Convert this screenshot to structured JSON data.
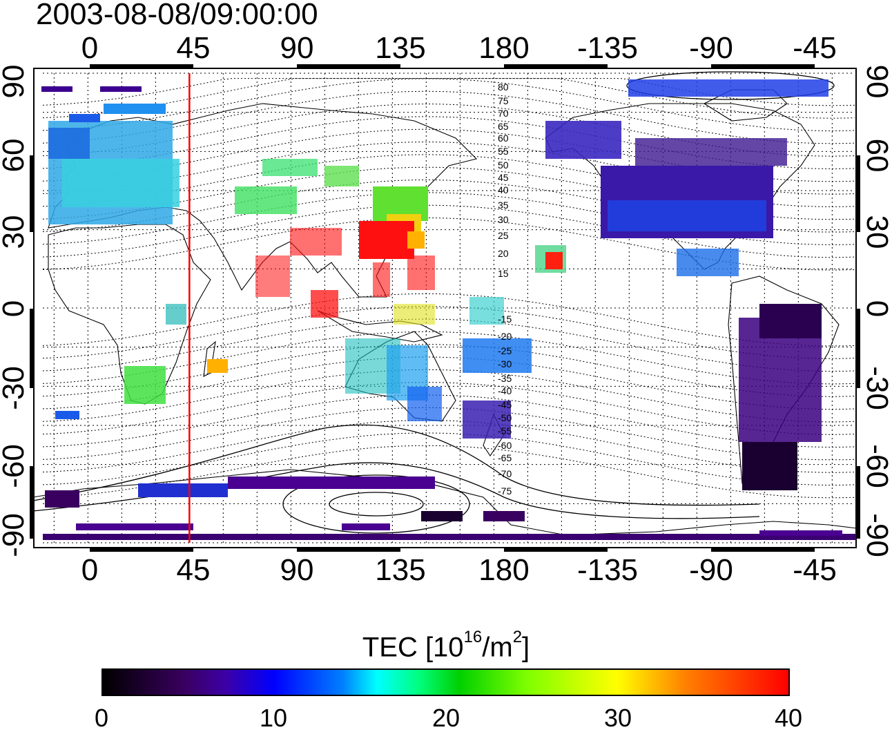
{
  "title": "2003-08-08/09:00:00",
  "axes": {
    "top_ticks": [
      "0",
      "45",
      "90",
      "135",
      "180",
      "-135",
      "-90",
      "-45"
    ],
    "bottom_ticks": [
      "0",
      "45",
      "90",
      "135",
      "180",
      "-135",
      "-90",
      "-45"
    ],
    "left_ticks": [
      "90",
      "60",
      "30",
      "0",
      "-30",
      "-60",
      "-90"
    ],
    "right_ticks": [
      "90",
      "60",
      "30",
      "0",
      "-30",
      "-60",
      "-90"
    ]
  },
  "contour_labels_north": [
    "80",
    "75",
    "70",
    "65",
    "60",
    "55",
    "50",
    "45",
    "40",
    "35",
    "30",
    "25",
    "20",
    "15"
  ],
  "contour_labels_south": [
    "-15",
    "-20",
    "-25",
    "-30",
    "-35",
    "-40",
    "-45",
    "-50",
    "-55",
    "-60",
    "-65",
    "-70",
    "-75"
  ],
  "marker_longitude": 45,
  "colorbar": {
    "title_main": "TEC  [10",
    "title_sup1": "16",
    "title_mid": "/m",
    "title_sup2": "2",
    "title_end": "]",
    "ticks": [
      "0",
      "10",
      "20",
      "30",
      "40"
    ],
    "range": [
      0,
      40
    ]
  },
  "colors": {
    "marker_line": "#ff0000"
  },
  "chart_data": {
    "type": "heatmap",
    "title": "2003-08-08/09:00:00",
    "x_range": [
      -20,
      340
    ],
    "y_range": [
      -90,
      90
    ],
    "value_range": [
      0,
      40
    ],
    "colorbar_label": "TEC  [10^16/m^2]",
    "regions": [
      {
        "lon": [
          -20,
          40
        ],
        "lat": [
          30,
          75
        ],
        "tec": 15
      },
      {
        "lon": [
          -20,
          45
        ],
        "lat": [
          75,
          85
        ],
        "tec": 6
      },
      {
        "lon": [
          95,
          140
        ],
        "lat": [
          0,
          35
        ],
        "tec": 38
      },
      {
        "lon": [
          125,
          155
        ],
        "lat": [
          30,
          60
        ],
        "tec": 24
      },
      {
        "lon": [
          60,
          110
        ],
        "lat": [
          35,
          55
        ],
        "tec": 22
      },
      {
        "lon": [
          15,
          45
        ],
        "lat": [
          -35,
          -15
        ],
        "tec": 22
      },
      {
        "lon": [
          115,
          155
        ],
        "lat": [
          -40,
          -10
        ],
        "tec": 16
      },
      {
        "lon": [
          165,
          190
        ],
        "lat": [
          -35,
          -10
        ],
        "tec": 12
      },
      {
        "lon": [
          235,
          295
        ],
        "lat": [
          25,
          60
        ],
        "tec": 6
      },
      {
        "lon": [
          195,
          225
        ],
        "lat": [
          55,
          72
        ],
        "tec": 5
      },
      {
        "lon": [
          280,
          320
        ],
        "lat": [
          -55,
          10
        ],
        "tec": 3
      },
      {
        "lon": [
          285,
          305
        ],
        "lat": [
          -80,
          -60
        ],
        "tec": 1
      },
      {
        "lon": [
          55,
          190
        ],
        "lat": [
          -80,
          -65
        ],
        "tec": 6
      },
      {
        "lon": [
          200,
          210
        ],
        "lat": [
          15,
          25
        ],
        "tec": 32
      }
    ]
  }
}
